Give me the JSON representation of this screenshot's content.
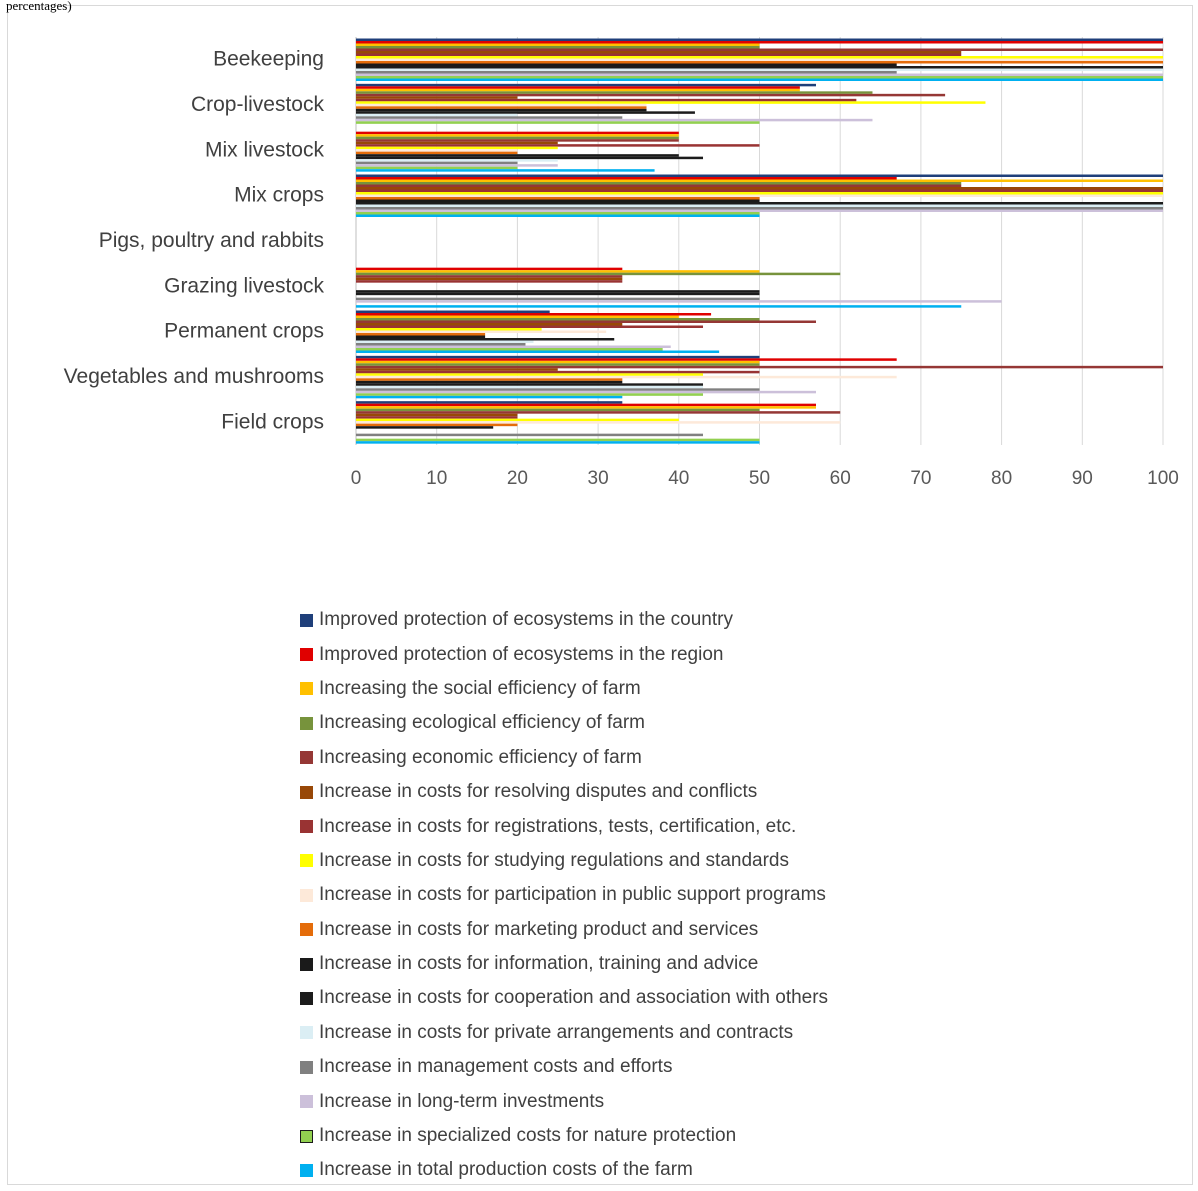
{
  "caption": "percentages)",
  "chart_data": {
    "type": "bar",
    "orientation": "horizontal",
    "title": "",
    "xlabel": "",
    "ylabel": "",
    "xlim": [
      0,
      100
    ],
    "x_ticks": [
      "0",
      "10",
      "20",
      "30",
      "40",
      "50",
      "60",
      "70",
      "80",
      "90",
      "100"
    ],
    "grid": true,
    "legend_position": "bottom",
    "categories": [
      "Beekeeping",
      "Crop-livestock",
      "Mix livestock",
      "Mix crops",
      "Pigs, poultry and rabbits",
      "Grazing livestock",
      "Permanent crops",
      "Vegetables and mushrooms",
      "Field crops"
    ],
    "series": [
      {
        "name": "Improved protection of ecosystems in the country",
        "color": "#1f3f7a",
        "values": [
          100,
          57,
          0,
          100,
          0,
          0,
          24,
          50,
          33
        ]
      },
      {
        "name": "Improved protection of ecosystems in the region",
        "color": "#e00000",
        "values": [
          100,
          55,
          40,
          67,
          0,
          33,
          44,
          67,
          57
        ]
      },
      {
        "name": "Increasing the social efficiency of farm",
        "color": "#ffc000",
        "values": [
          50,
          55,
          40,
          100,
          0,
          50,
          40,
          50,
          57
        ]
      },
      {
        "name": "Increasing ecological efficiency of farm",
        "color": "#77933c",
        "values": [
          50,
          64,
          40,
          75,
          0,
          60,
          50,
          50,
          50
        ]
      },
      {
        "name": "Increasing economic efficiency of farm",
        "color": "#953735",
        "values": [
          100,
          73,
          40,
          75,
          0,
          33,
          57,
          100,
          60
        ]
      },
      {
        "name": "Increase in costs for resolving disputes and conflicts",
        "color": "#984807",
        "values": [
          75,
          20,
          25,
          100,
          0,
          33,
          33,
          25,
          20
        ]
      },
      {
        "name": "Increase in costs for registrations, tests, certification, etc.",
        "color": "#993333",
        "values": [
          75,
          62,
          50,
          100,
          0,
          33,
          43,
          50,
          20
        ]
      },
      {
        "name": "Increase in costs for studying regulations and standards",
        "color": "#ffff00",
        "values": [
          100,
          78,
          25,
          100,
          0,
          0,
          23,
          43,
          40
        ]
      },
      {
        "name": "Increase in costs for participation in public support programs",
        "color": "#fde9d9",
        "values": [
          100,
          36,
          20,
          100,
          0,
          0,
          31,
          67,
          60
        ]
      },
      {
        "name": "Increase in costs for marketing product and services",
        "color": "#e46c0a",
        "values": [
          100,
          36,
          20,
          50,
          0,
          0,
          16,
          33,
          20
        ]
      },
      {
        "name": "Increase in costs for information, training and advice",
        "color": "#1a1a1a",
        "values": [
          67,
          36,
          40,
          50,
          0,
          50,
          16,
          33,
          17
        ]
      },
      {
        "name": "Increase in costs for cooperation and association with others",
        "color": "#1c1c1c",
        "values": [
          100,
          42,
          43,
          100,
          0,
          50,
          32,
          43,
          0
        ]
      },
      {
        "name": "Increase in costs for private arrangements and contracts",
        "color": "#dbeef4",
        "values": [
          100,
          20,
          25,
          100,
          0,
          0,
          22,
          43,
          0
        ]
      },
      {
        "name": "Increase in management costs and efforts",
        "color": "#808080",
        "values": [
          67,
          33,
          20,
          100,
          0,
          50,
          21,
          50,
          43
        ]
      },
      {
        "name": "Increase in long-term investments",
        "color": "#ccc0da",
        "values": [
          100,
          64,
          25,
          100,
          0,
          80,
          39,
          57,
          0
        ]
      },
      {
        "name": "Increase in specialized costs for nature protection",
        "color": "#92d050",
        "values": [
          100,
          50,
          20,
          50,
          0,
          0,
          38,
          43,
          50
        ]
      },
      {
        "name": "Increase in total production costs of the farm",
        "color": "#00b0f0",
        "values": [
          100,
          0,
          37,
          50,
          0,
          75,
          45,
          33,
          50
        ]
      }
    ]
  }
}
